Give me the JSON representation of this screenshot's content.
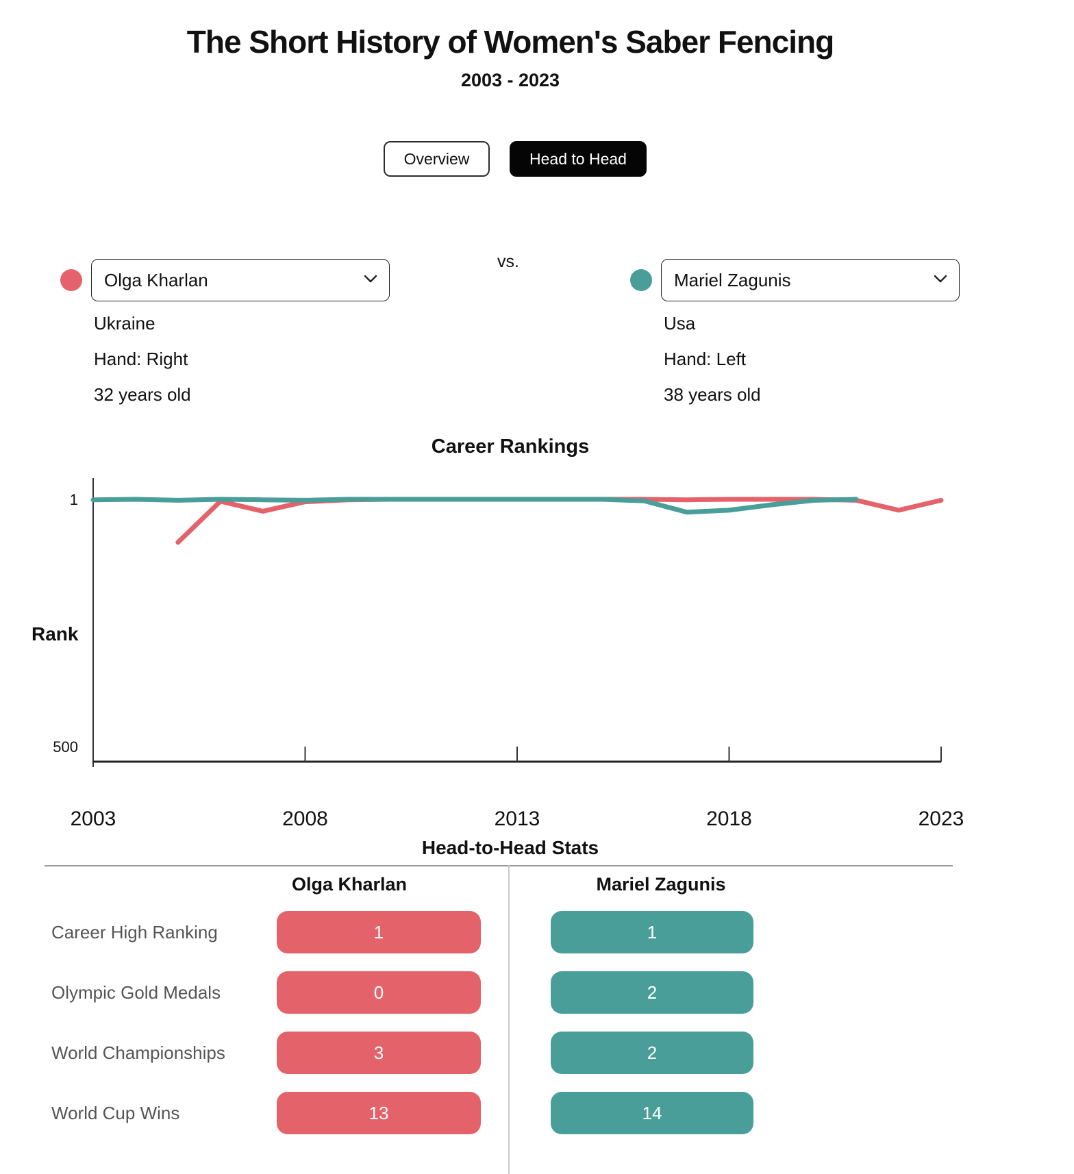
{
  "header": {
    "title": "The Short History of Women's Saber Fencing",
    "subtitle": "2003 - 2023"
  },
  "tabs": {
    "overview": {
      "label": "Overview",
      "active": false
    },
    "head_to_head": {
      "label": "Head to Head",
      "active": true
    }
  },
  "vs_label": "vs.",
  "players": {
    "left": {
      "name": "Olga Kharlan",
      "country": "Ukraine",
      "hand": "Hand: Right",
      "age": "32 years old",
      "color": "#e4636b"
    },
    "right": {
      "name": "Mariel Zagunis",
      "country": "Usa",
      "hand": "Hand: Left",
      "age": "38 years old",
      "color": "#4a9e9a"
    }
  },
  "chart_data": {
    "type": "line",
    "title": "Career Rankings",
    "xlabel": "",
    "ylabel": "Rank",
    "y_axis_inverted": true,
    "ylim": [
      1,
      500
    ],
    "yticks": [
      1,
      500
    ],
    "xlim": [
      2003,
      2023
    ],
    "xticks": [
      2003,
      2008,
      2013,
      2018,
      2023
    ],
    "grid": false,
    "legend": "none",
    "series": [
      {
        "name": "Olga Kharlan",
        "color": "#e4636b",
        "points": [
          [
            2005,
            88
          ],
          [
            2006,
            5
          ],
          [
            2007,
            25
          ],
          [
            2008,
            6
          ],
          [
            2009,
            2
          ],
          [
            2010,
            1
          ],
          [
            2011,
            1
          ],
          [
            2012,
            1
          ],
          [
            2013,
            1
          ],
          [
            2014,
            1
          ],
          [
            2015,
            1
          ],
          [
            2016,
            1
          ],
          [
            2017,
            2
          ],
          [
            2018,
            1
          ],
          [
            2019,
            1
          ],
          [
            2020,
            1
          ],
          [
            2021,
            3
          ],
          [
            2022,
            23
          ],
          [
            2023,
            3
          ]
        ]
      },
      {
        "name": "Mariel Zagunis",
        "color": "#4a9e9a",
        "points": [
          [
            2003,
            2
          ],
          [
            2004,
            1
          ],
          [
            2005,
            3
          ],
          [
            2006,
            1
          ],
          [
            2007,
            2
          ],
          [
            2008,
            3
          ],
          [
            2009,
            1
          ],
          [
            2010,
            1
          ],
          [
            2011,
            1
          ],
          [
            2012,
            1
          ],
          [
            2013,
            1
          ],
          [
            2014,
            1
          ],
          [
            2015,
            1
          ],
          [
            2016,
            4
          ],
          [
            2017,
            27
          ],
          [
            2018,
            23
          ],
          [
            2019,
            12
          ],
          [
            2020,
            3
          ],
          [
            2021,
            1
          ]
        ]
      }
    ]
  },
  "stats_table": {
    "title": "Head-to-Head Stats",
    "columns": [
      "Olga Kharlan",
      "Mariel Zagunis"
    ],
    "rows": [
      {
        "label": "Career High Ranking",
        "values": [
          "1",
          "1"
        ]
      },
      {
        "label": "Olympic Gold Medals",
        "values": [
          "0",
          "2"
        ]
      },
      {
        "label": "World Championships",
        "values": [
          "3",
          "2"
        ]
      },
      {
        "label": "World Cup Wins",
        "values": [
          "13",
          "14"
        ]
      }
    ]
  }
}
